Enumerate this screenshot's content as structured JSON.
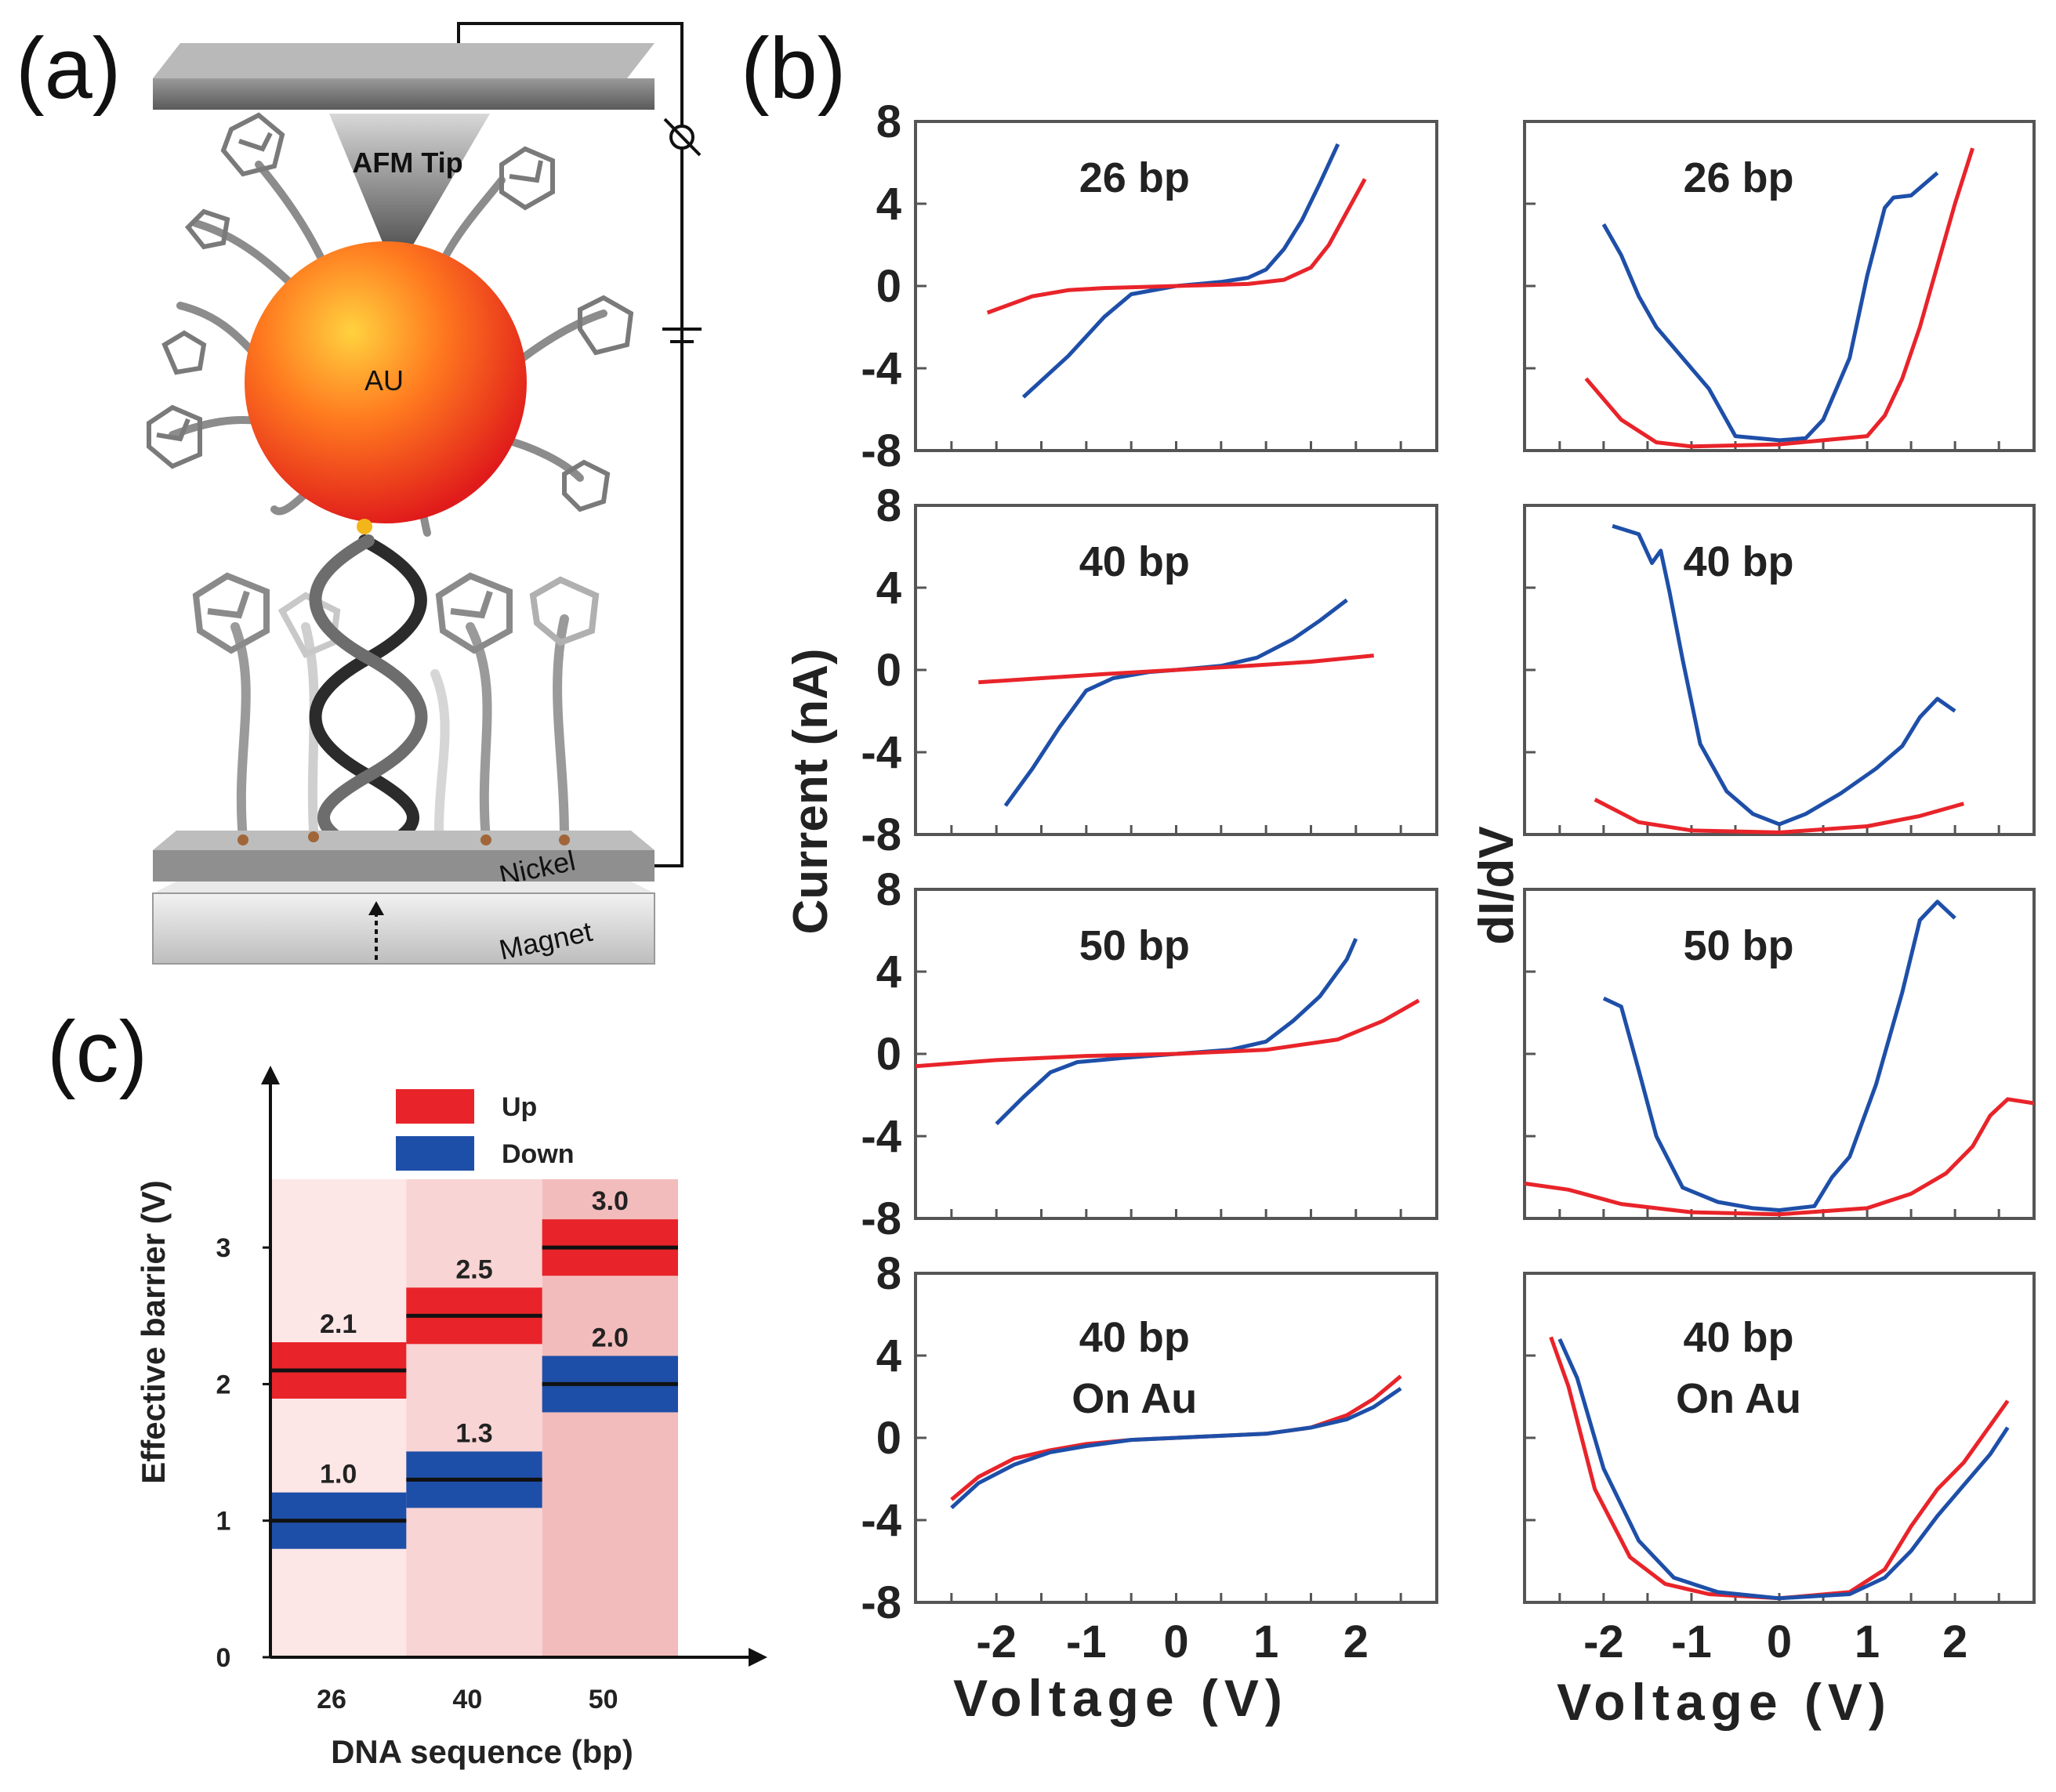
{
  "panel_labels": {
    "a": "(a)",
    "b": "(b)",
    "c": "(c)"
  },
  "schematic": {
    "tip_label": "AFM Tip",
    "particle_label": "AU",
    "substrate_label": "Nickel",
    "magnet_label": "Magnet"
  },
  "colors": {
    "up": "#e8242a",
    "down": "#1e4fa8",
    "axis": "#333333"
  },
  "chart_data": [
    {
      "type": "line",
      "panel": "b",
      "ylabel_left": "Current (nA)",
      "ylabel_right": "dI/dV",
      "xlabel": "Voltage (V)",
      "xticks": [
        "-2",
        "-1",
        "0",
        "1",
        "2"
      ],
      "yticks": [
        "8",
        "4",
        "0",
        "-4",
        "-8"
      ],
      "left_column": [
        {
          "title": "26 bp",
          "xlim": [
            -2.9,
            2.9
          ],
          "ylim": [
            -8,
            8
          ],
          "series": [
            {
              "name": "blue",
              "x": [
                -1.7,
                -1.2,
                -0.8,
                -0.5,
                0,
                0.5,
                0.8,
                1.0,
                1.2,
                1.4,
                1.6,
                1.8
              ],
              "y": [
                -5.4,
                -3.4,
                -1.5,
                -0.4,
                0,
                0.2,
                0.4,
                0.8,
                1.8,
                3.2,
                5.0,
                6.9
              ]
            },
            {
              "name": "red",
              "x": [
                -2.1,
                -1.6,
                -1.2,
                -0.8,
                0,
                0.8,
                1.2,
                1.5,
                1.7,
                1.9,
                2.1
              ],
              "y": [
                -1.3,
                -0.5,
                -0.2,
                -0.1,
                0,
                0.1,
                0.3,
                0.9,
                2.0,
                3.6,
                5.2
              ]
            }
          ]
        },
        {
          "title": "40 bp",
          "xlim": [
            -2.9,
            2.9
          ],
          "ylim": [
            -8,
            8
          ],
          "series": [
            {
              "name": "blue",
              "x": [
                -1.9,
                -1.6,
                -1.3,
                -1.0,
                -0.7,
                -0.3,
                0,
                0.5,
                0.9,
                1.3,
                1.6,
                1.9
              ],
              "y": [
                -6.6,
                -4.8,
                -2.8,
                -1.0,
                -0.4,
                -0.1,
                0,
                0.2,
                0.6,
                1.5,
                2.4,
                3.4
              ]
            },
            {
              "name": "red",
              "x": [
                -2.2,
                -1.5,
                -0.8,
                0,
                0.8,
                1.5,
                2.2
              ],
              "y": [
                -0.6,
                -0.4,
                -0.2,
                0,
                0.2,
                0.4,
                0.7
              ]
            }
          ]
        },
        {
          "title": "50 bp",
          "xlim": [
            -2.9,
            2.9
          ],
          "ylim": [
            -8,
            8
          ],
          "series": [
            {
              "name": "blue",
              "x": [
                -2.0,
                -1.7,
                -1.4,
                -1.1,
                -0.6,
                0,
                0.6,
                1.0,
                1.3,
                1.6,
                1.9,
                2.0
              ],
              "y": [
                -3.4,
                -2.1,
                -0.9,
                -0.4,
                -0.2,
                0,
                0.2,
                0.6,
                1.6,
                2.8,
                4.6,
                5.6
              ]
            },
            {
              "name": "red",
              "x": [
                -2.9,
                -2.0,
                -1.0,
                0,
                1.0,
                1.8,
                2.3,
                2.7
              ],
              "y": [
                -0.6,
                -0.3,
                -0.1,
                0,
                0.2,
                0.7,
                1.6,
                2.6
              ]
            }
          ]
        },
        {
          "title": "40 bp",
          "subtitle": "On Au",
          "xlim": [
            -2.9,
            2.9
          ],
          "ylim": [
            -8,
            8
          ],
          "series": [
            {
              "name": "red",
              "x": [
                -2.5,
                -2.2,
                -1.8,
                -1.4,
                -1.0,
                -0.5,
                0,
                0.5,
                1.0,
                1.5,
                1.9,
                2.2,
                2.5
              ],
              "y": [
                -3.0,
                -1.9,
                -1.0,
                -0.6,
                -0.3,
                -0.1,
                0,
                0.1,
                0.2,
                0.5,
                1.1,
                1.9,
                3.0
              ]
            },
            {
              "name": "blue",
              "x": [
                -2.5,
                -2.2,
                -1.8,
                -1.4,
                -1.0,
                -0.5,
                0,
                0.5,
                1.0,
                1.5,
                1.9,
                2.2,
                2.5
              ],
              "y": [
                -3.4,
                -2.2,
                -1.3,
                -0.7,
                -0.4,
                -0.1,
                0,
                0.1,
                0.2,
                0.5,
                0.9,
                1.5,
                2.4
              ]
            }
          ]
        }
      ],
      "right_column": [
        {
          "title": "26 bp",
          "xlim": [
            -2.9,
            2.9
          ],
          "ylim": [
            -8,
            8
          ],
          "series": [
            {
              "name": "blue",
              "x": [
                -2.0,
                -1.8,
                -1.6,
                -1.4,
                -1.1,
                -0.8,
                -0.5,
                0,
                0.3,
                0.5,
                0.8,
                1.0,
                1.2,
                1.3,
                1.5,
                1.8
              ],
              "y": [
                3.0,
                1.5,
                -0.5,
                -2.0,
                -3.5,
                -5.0,
                -7.3,
                -7.5,
                -7.4,
                -6.5,
                -3.5,
                0.5,
                3.8,
                4.3,
                4.4,
                5.5
              ]
            },
            {
              "name": "red",
              "x": [
                -2.2,
                -1.8,
                -1.4,
                -1.0,
                0,
                1.0,
                1.2,
                1.4,
                1.6,
                1.8,
                2.0,
                2.2
              ],
              "y": [
                -4.5,
                -6.5,
                -7.6,
                -7.8,
                -7.7,
                -7.3,
                -6.3,
                -4.5,
                -2.0,
                1.0,
                4.0,
                6.7
              ]
            }
          ]
        },
        {
          "title": "40 bp",
          "xlim": [
            -2.9,
            2.9
          ],
          "ylim": [
            -8,
            8
          ],
          "series": [
            {
              "name": "blue",
              "x": [
                -1.9,
                -1.6,
                -1.45,
                -1.35,
                -1.25,
                -1.1,
                -0.9,
                -0.6,
                -0.3,
                0,
                0.3,
                0.7,
                1.1,
                1.4,
                1.6,
                1.8,
                2.0
              ],
              "y": [
                7.0,
                6.6,
                5.2,
                5.8,
                3.8,
                0.5,
                -3.6,
                -5.9,
                -7.0,
                -7.5,
                -7.0,
                -6.0,
                -4.8,
                -3.7,
                -2.3,
                -1.4,
                -2.0
              ]
            },
            {
              "name": "red",
              "x": [
                -2.1,
                -1.6,
                -1.0,
                0,
                1.0,
                1.6,
                2.1
              ],
              "y": [
                -6.3,
                -7.4,
                -7.8,
                -7.9,
                -7.6,
                -7.1,
                -6.5
              ]
            }
          ]
        },
        {
          "title": "50 bp",
          "xlim": [
            -2.9,
            2.9
          ],
          "ylim": [
            -8,
            8
          ],
          "series": [
            {
              "name": "blue",
              "x": [
                -2.0,
                -1.8,
                -1.6,
                -1.4,
                -1.1,
                -0.7,
                -0.3,
                0,
                0.4,
                0.6,
                0.8,
                1.1,
                1.4,
                1.6,
                1.8,
                2.0
              ],
              "y": [
                2.7,
                2.3,
                -0.8,
                -4.0,
                -6.5,
                -7.2,
                -7.5,
                -7.6,
                -7.4,
                -6.0,
                -5.0,
                -1.5,
                3.0,
                6.5,
                7.4,
                6.6
              ]
            },
            {
              "name": "red",
              "x": [
                -2.9,
                -2.4,
                -1.8,
                -1.0,
                0,
                1.0,
                1.5,
                1.9,
                2.2,
                2.4,
                2.6,
                2.9
              ],
              "y": [
                -6.3,
                -6.6,
                -7.3,
                -7.7,
                -7.8,
                -7.5,
                -6.8,
                -5.8,
                -4.5,
                -3.0,
                -2.2,
                -2.4
              ]
            }
          ]
        },
        {
          "title": "40 bp",
          "subtitle": "On Au",
          "xlim": [
            -2.9,
            2.9
          ],
          "ylim": [
            -8,
            8
          ],
          "series": [
            {
              "name": "red",
              "x": [
                -2.6,
                -2.4,
                -2.1,
                -1.7,
                -1.3,
                -0.8,
                0,
                0.8,
                1.2,
                1.5,
                1.8,
                2.1,
                2.4,
                2.6
              ],
              "y": [
                4.9,
                2.5,
                -2.5,
                -5.8,
                -7.1,
                -7.6,
                -7.8,
                -7.5,
                -6.4,
                -4.3,
                -2.5,
                -1.2,
                0.6,
                1.8
              ]
            },
            {
              "name": "blue",
              "x": [
                -2.5,
                -2.3,
                -2.0,
                -1.6,
                -1.2,
                -0.7,
                0,
                0.8,
                1.2,
                1.5,
                1.8,
                2.1,
                2.4,
                2.6
              ],
              "y": [
                4.8,
                2.9,
                -1.5,
                -5.0,
                -6.8,
                -7.5,
                -7.8,
                -7.6,
                -6.8,
                -5.5,
                -3.8,
                -2.3,
                -0.8,
                0.5
              ]
            }
          ]
        }
      ]
    },
    {
      "type": "bar",
      "panel": "c",
      "xlabel": "DNA sequence (bp)",
      "ylabel": "Effective barrier (V)",
      "categories": [
        "26",
        "40",
        "50"
      ],
      "ylim": [
        0,
        3.5
      ],
      "yticks": [
        "0",
        "1",
        "2",
        "3"
      ],
      "legend": [
        {
          "name": "Up"
        },
        {
          "name": "Down"
        }
      ],
      "series": [
        {
          "name": "Up",
          "values": [
            2.1,
            2.5,
            3.0
          ],
          "labels": [
            "2.1",
            "2.5",
            "3.0"
          ]
        },
        {
          "name": "Down",
          "values": [
            1.0,
            1.3,
            2.0
          ],
          "labels": [
            "1.0",
            "1.3",
            "2.0"
          ]
        }
      ]
    }
  ]
}
